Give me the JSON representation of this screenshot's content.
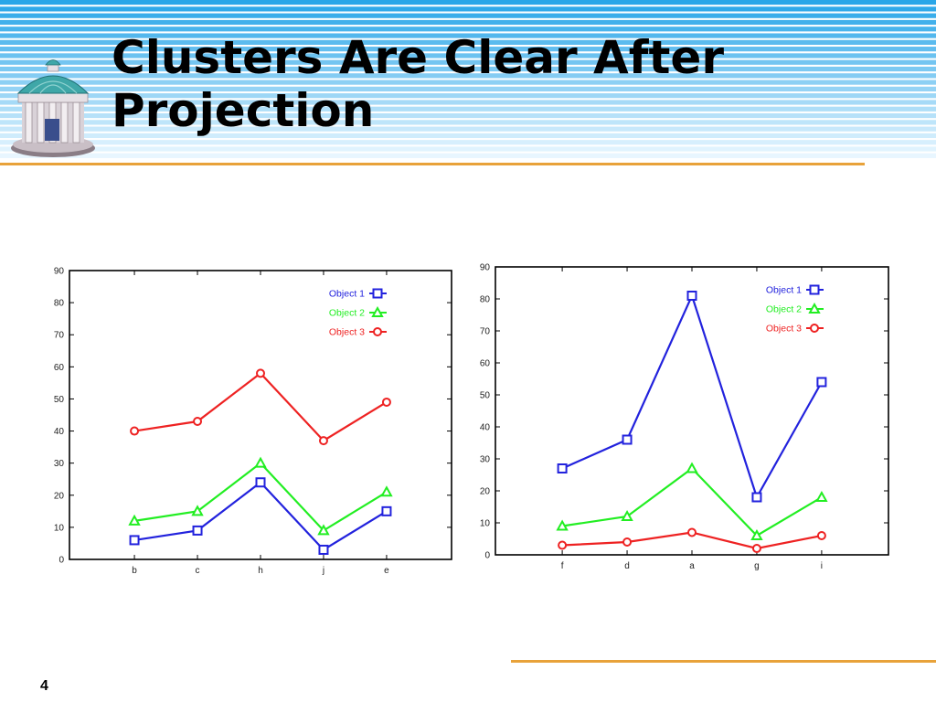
{
  "slide": {
    "title": "Clusters Are Clear After Projection",
    "title_lines": [
      "Clusters Are Clear After",
      "Projection"
    ],
    "page_number": "4",
    "logo_icon": "old-well-icon",
    "colors": {
      "band_light": "#e8f6ff",
      "band_dark": "#29a6e8",
      "rule": "#e8a23a"
    }
  },
  "chart_data": [
    {
      "type": "line",
      "categories": [
        "b",
        "c",
        "h",
        "j",
        "e"
      ],
      "ylim": [
        0,
        90
      ],
      "yticks": [
        0,
        10,
        20,
        30,
        40,
        50,
        60,
        70,
        80,
        90
      ],
      "legend_position": "top-right",
      "series": [
        {
          "name": "Object 1",
          "color": "#2222dd",
          "marker": "square",
          "values": [
            6,
            9,
            24,
            3,
            15
          ]
        },
        {
          "name": "Object 2",
          "color": "#22ee22",
          "marker": "triangle",
          "values": [
            12,
            15,
            30,
            9,
            21
          ]
        },
        {
          "name": "Object 3",
          "color": "#ee2222",
          "marker": "circle",
          "values": [
            40,
            43,
            58,
            37,
            49
          ]
        }
      ]
    },
    {
      "type": "line",
      "categories": [
        "f",
        "d",
        "a",
        "g",
        "i"
      ],
      "ylim": [
        0,
        90
      ],
      "yticks": [
        0,
        10,
        20,
        30,
        40,
        50,
        60,
        70,
        80,
        90
      ],
      "legend_position": "top-right",
      "series": [
        {
          "name": "Object 1",
          "color": "#2222dd",
          "marker": "square",
          "values": [
            27,
            36,
            81,
            18,
            54
          ]
        },
        {
          "name": "Object 2",
          "color": "#22ee22",
          "marker": "triangle",
          "values": [
            9,
            12,
            27,
            6,
            18
          ]
        },
        {
          "name": "Object 3",
          "color": "#ee2222",
          "marker": "circle",
          "values": [
            3,
            4,
            7,
            2,
            6
          ]
        }
      ]
    }
  ]
}
